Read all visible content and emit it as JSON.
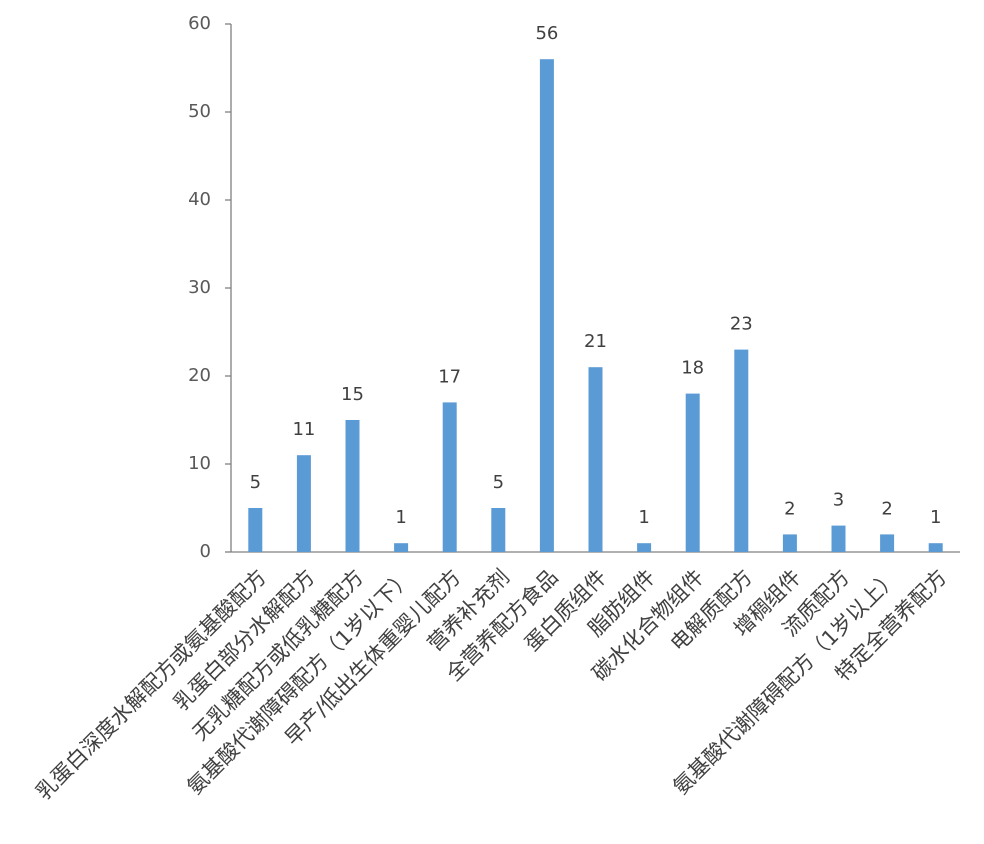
{
  "chart_data": {
    "type": "bar",
    "categories": [
      "乳蛋白深度水解配方或氨基酸配方",
      "乳蛋白部分水解配方",
      "无乳糖配方或低乳糖配方",
      "氨基酸代谢障碍配方（1岁以下）",
      "早产/低出生体重婴儿配方",
      "营养补充剂",
      "全营养配方食品",
      "蛋白质组件",
      "脂肪组件",
      "碳水化合物组件",
      "电解质配方",
      "增稠组件",
      "流质配方",
      "氨基酸代谢障碍配方（1岁以上）",
      "特定全营养配方"
    ],
    "values": [
      5,
      11,
      15,
      1,
      17,
      5,
      56,
      21,
      1,
      18,
      23,
      2,
      3,
      2,
      1
    ],
    "color": "#5b9bd5",
    "ylim": [
      0,
      60
    ],
    "yticks": [
      0,
      10,
      20,
      30,
      40,
      50,
      60
    ],
    "grid": false
  }
}
